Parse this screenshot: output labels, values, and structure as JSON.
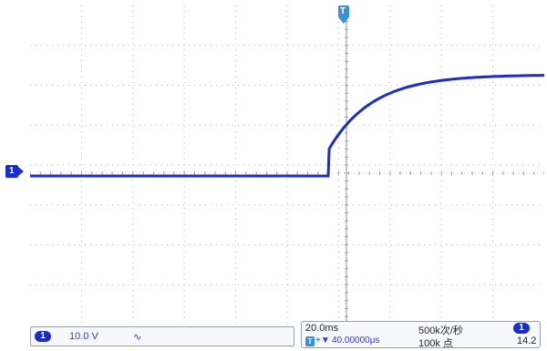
{
  "channel": {
    "number": "1",
    "scale": "10.0 V",
    "coupling_icon": "dc-coupling-icon"
  },
  "timebase": {
    "scale": "20.0ms",
    "trigger_position": "40.00000μs",
    "sample_rate": "500k次/秒",
    "record_length": "100k 点",
    "trigger_channel": "1",
    "trigger_level": "14.2"
  },
  "markers": {
    "ground_marker": "1",
    "trigger_marker": "T"
  },
  "colors": {
    "trace": "#1a2dc8",
    "grid": "#b9bec8",
    "accent": "#2a3bd0"
  }
}
